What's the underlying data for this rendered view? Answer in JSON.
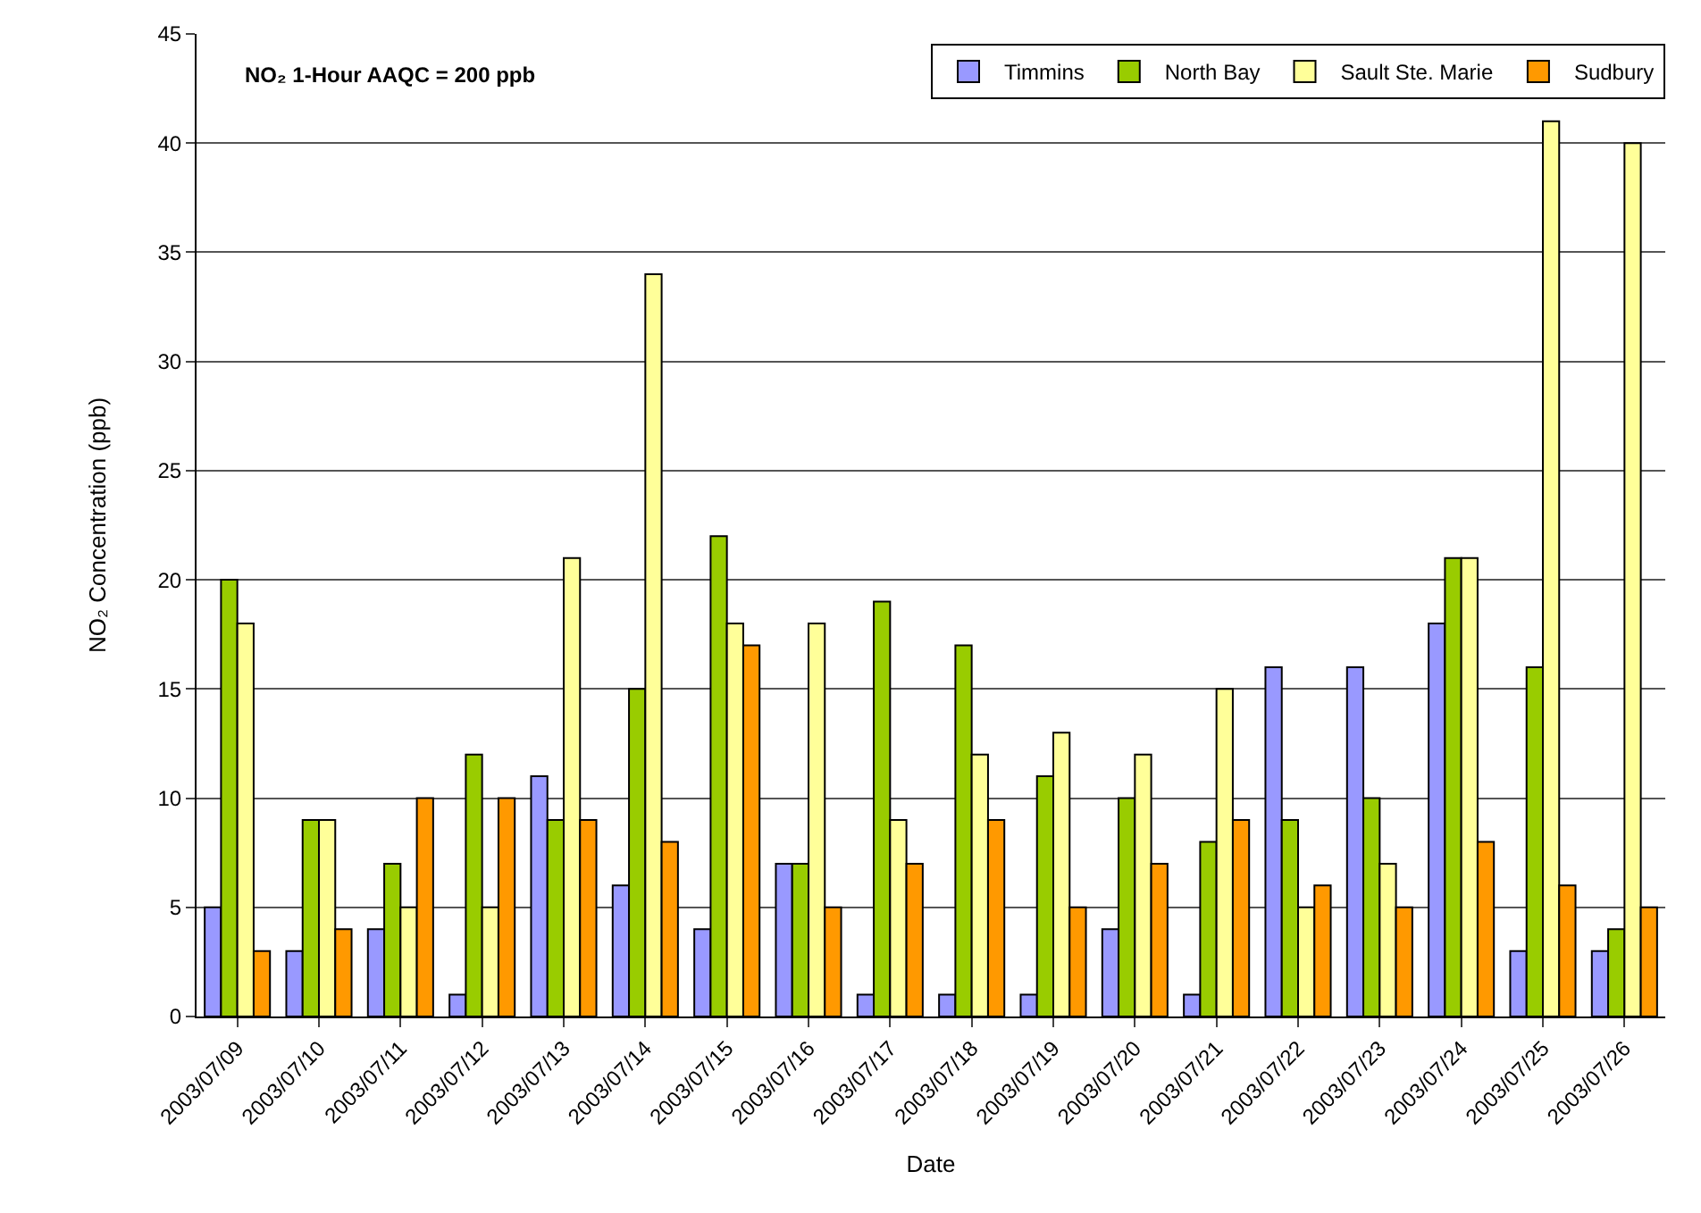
{
  "chart_data": {
    "type": "bar",
    "xlabel": "Date",
    "ylabel": "NO₂ Concentration (ppb)",
    "annotations": [
      "NO₂ 1-Hour AAQC = 200 ppb"
    ],
    "categories": [
      "2003/07/09",
      "2003/07/10",
      "2003/07/11",
      "2003/07/12",
      "2003/07/13",
      "2003/07/14",
      "2003/07/15",
      "2003/07/16",
      "2003/07/17",
      "2003/07/18",
      "2003/07/19",
      "2003/07/20",
      "2003/07/21",
      "2003/07/22",
      "2003/07/23",
      "2003/07/24",
      "2003/07/25",
      "2003/07/26"
    ],
    "series": [
      {
        "name": "Timmins",
        "color": "#9999ff",
        "values": [
          5,
          3,
          4,
          1,
          11,
          6,
          4,
          7,
          1,
          1,
          1,
          4,
          1,
          16,
          16,
          18,
          3,
          3
        ]
      },
      {
        "name": "North Bay",
        "color": "#99cc00",
        "values": [
          20,
          9,
          7,
          12,
          9,
          15,
          22,
          7,
          19,
          17,
          11,
          10,
          8,
          9,
          10,
          21,
          16,
          4
        ]
      },
      {
        "name": "Sault Ste. Marie",
        "color": "#ffff99",
        "values": [
          18,
          9,
          5,
          5,
          21,
          34,
          18,
          18,
          9,
          12,
          13,
          12,
          15,
          5,
          7,
          21,
          41,
          40
        ]
      },
      {
        "name": "Sudbury",
        "color": "#ff9900",
        "values": [
          3,
          4,
          10,
          10,
          9,
          8,
          17,
          5,
          7,
          9,
          5,
          7,
          9,
          6,
          5,
          8,
          6,
          5
        ]
      }
    ],
    "ylim": [
      0,
      45
    ],
    "yticks": [
      0,
      5,
      10,
      15,
      20,
      25,
      30,
      35,
      40,
      45
    ],
    "grid": "y",
    "legend": "top right"
  }
}
